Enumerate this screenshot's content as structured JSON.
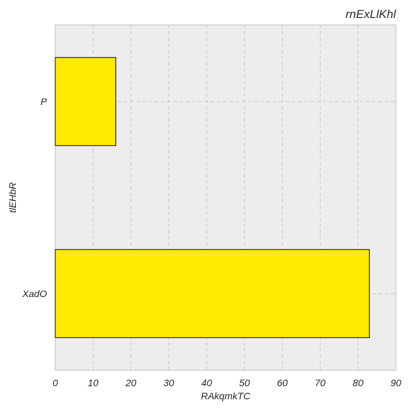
{
  "chart_data": {
    "type": "bar",
    "orientation": "horizontal",
    "title": "rnExLlKhl",
    "xlabel": "RAkqmkTC",
    "ylabel": "tlEHbR",
    "categories": [
      "P",
      "XadO"
    ],
    "values": [
      16,
      83
    ],
    "xlim": [
      0,
      90
    ],
    "xticks": [
      0,
      10,
      20,
      30,
      40,
      50,
      60,
      70,
      80,
      90
    ],
    "grid": true,
    "legend": "none",
    "colors": {
      "bar_fill": "#ffea00",
      "bar_edge": "#000000",
      "plot_background": "#ededed",
      "grid": "#c8c8c8"
    }
  }
}
